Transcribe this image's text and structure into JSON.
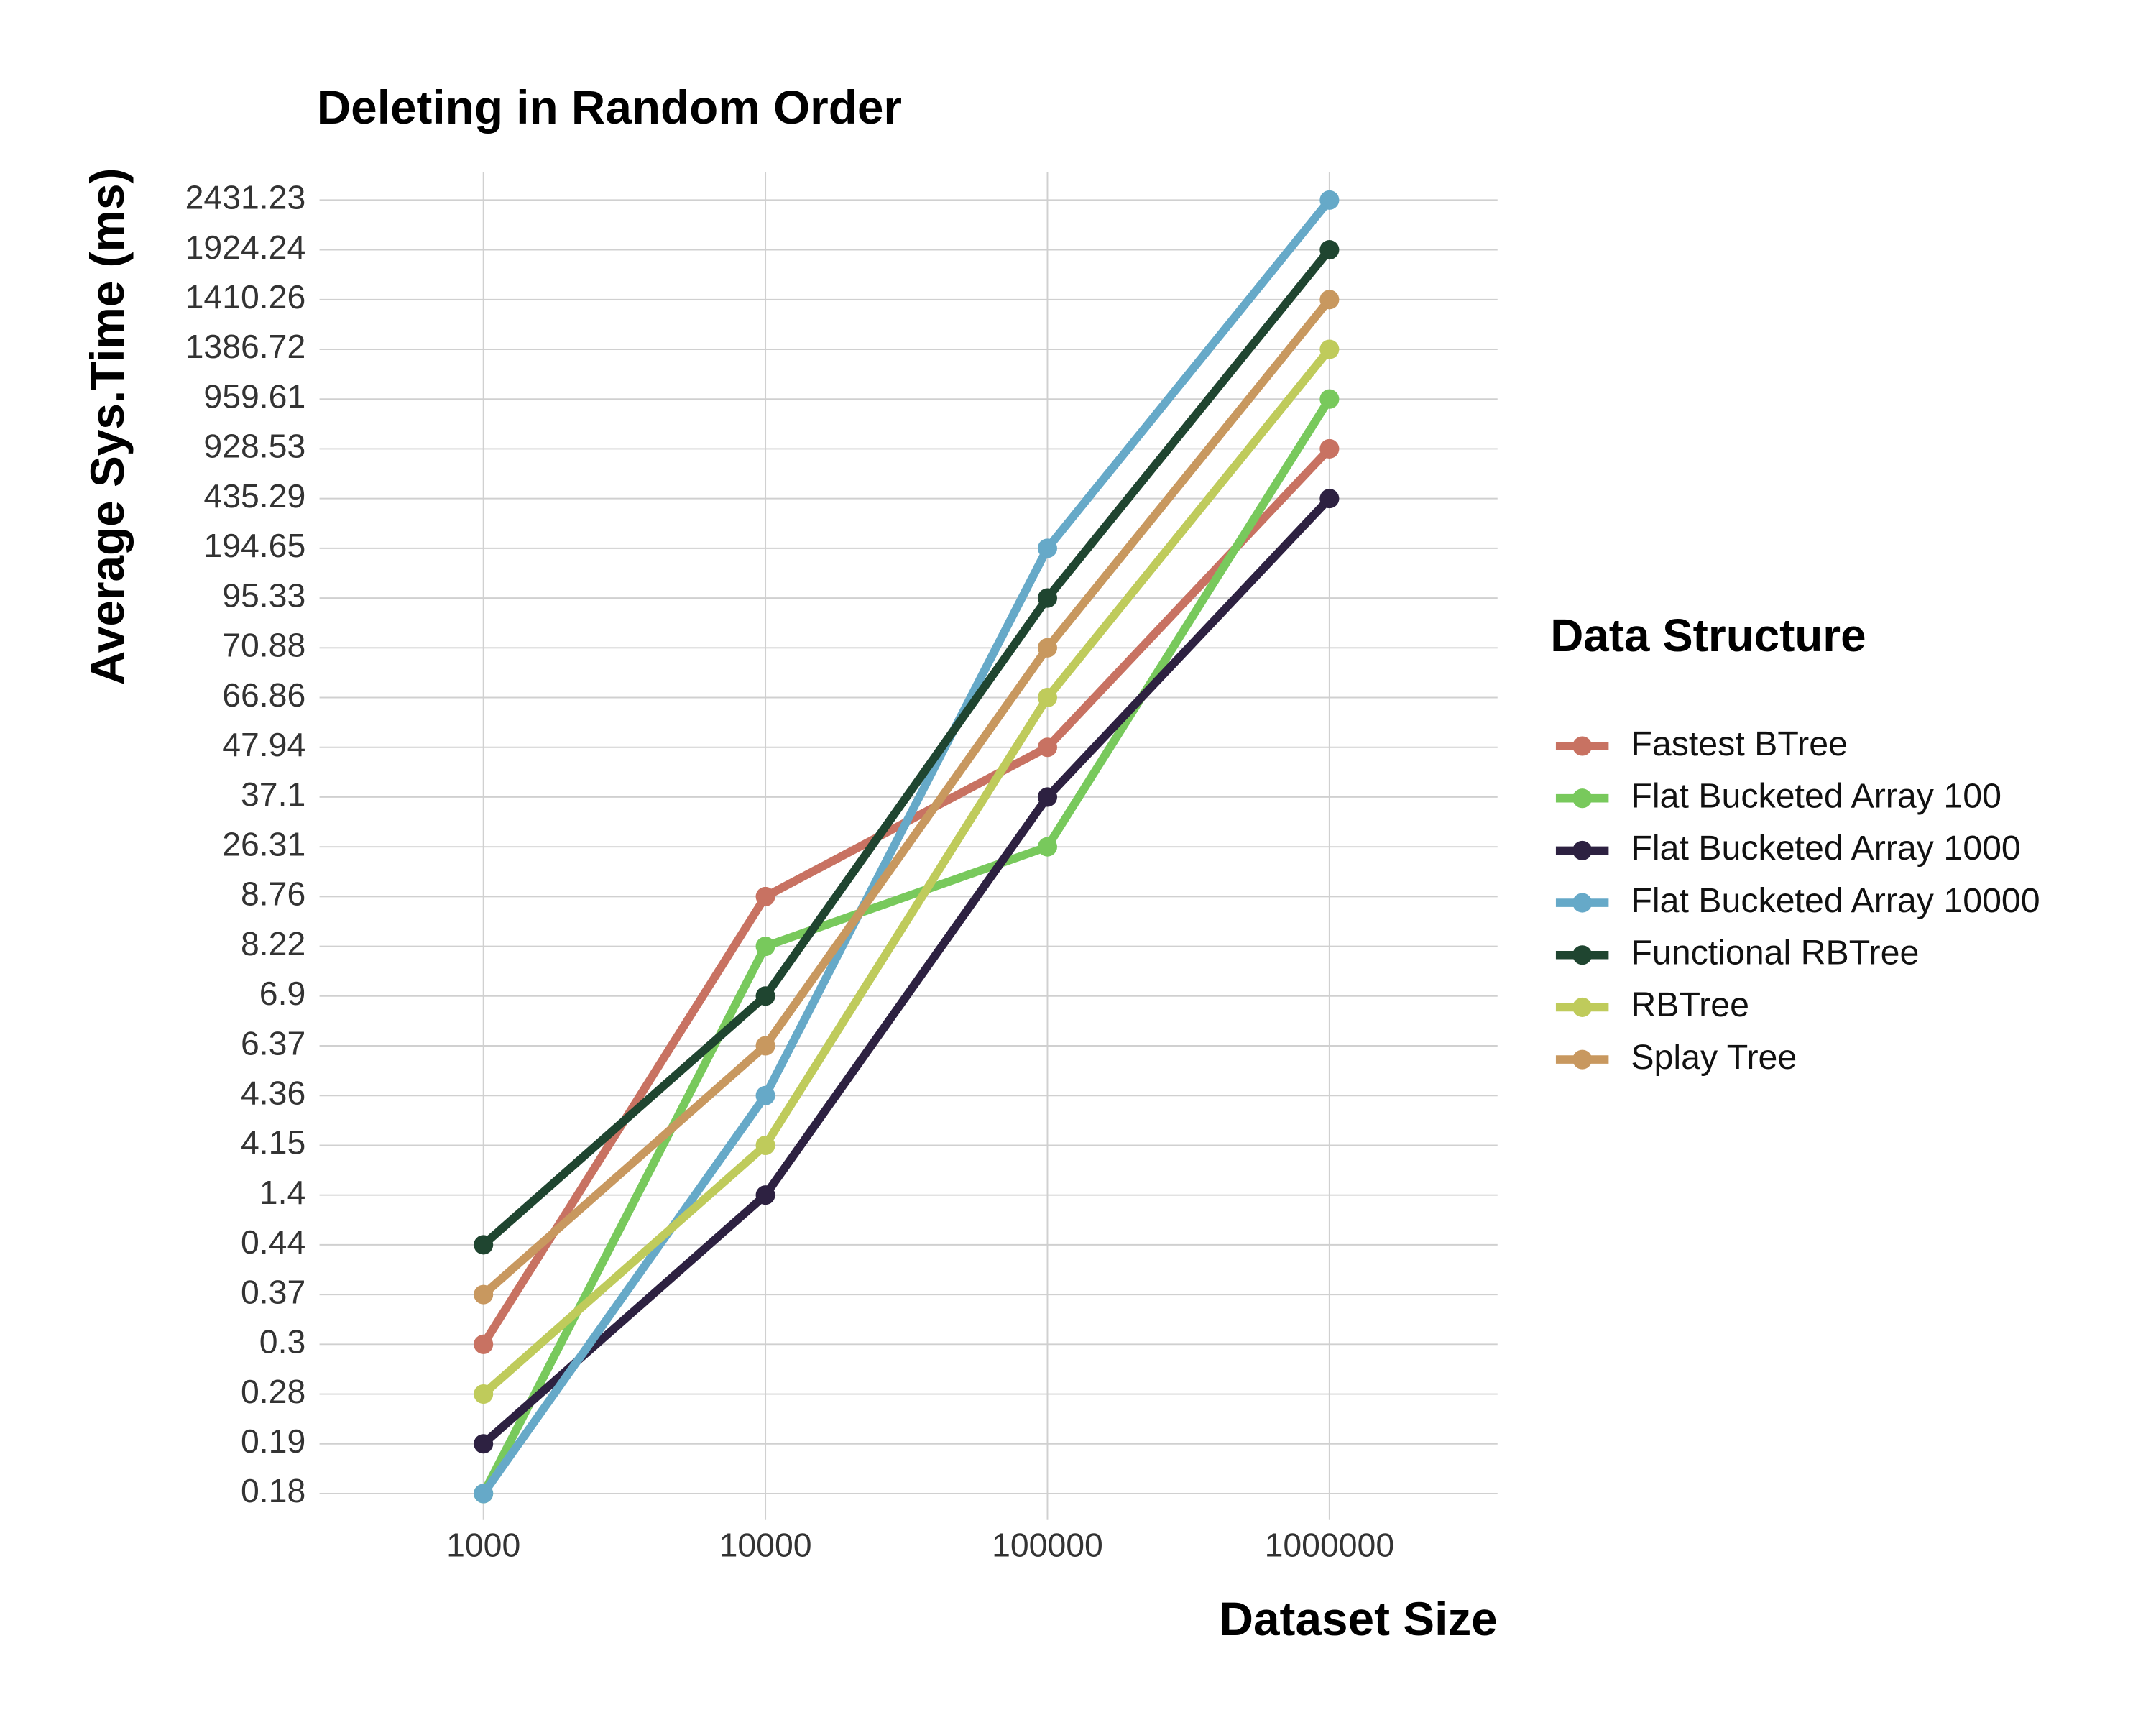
{
  "chart_data": {
    "type": "line",
    "title": "Deleting in Random Order",
    "x_label": "Dataset Size",
    "y_label": "Average Sys.Time (ms)",
    "legend_title": "Data Structure",
    "legend_position": "right",
    "grid": true,
    "categories": [
      1000,
      10000,
      100000,
      1000000
    ],
    "ycategories": [
      0.18,
      0.19,
      0.28,
      0.3,
      0.37,
      0.44,
      1.4,
      4.15,
      4.36,
      6.37,
      6.9,
      8.22,
      8.76,
      26.31,
      37.1,
      47.94,
      66.86,
      70.88,
      95.33,
      194.65,
      435.29,
      928.53,
      959.61,
      1386.72,
      1410.26,
      1924.24,
      2431.23
    ],
    "series": [
      {
        "name": "Fastest BTree",
        "color": "#c87262",
        "values": [
          0.3,
          8.76,
          47.94,
          928.53
        ]
      },
      {
        "name": "Flat Bucketed Array 100",
        "color": "#78c95c",
        "values": [
          0.18,
          8.22,
          26.31,
          959.61
        ]
      },
      {
        "name": "Flat Bucketed Array 1000",
        "color": "#2d2141",
        "values": [
          0.19,
          1.4,
          37.1,
          435.29
        ]
      },
      {
        "name": "Flat Bucketed Array 10000",
        "color": "#66a9c8",
        "values": [
          0.18,
          4.36,
          194.65,
          2431.23
        ]
      },
      {
        "name": "Functional RBTree",
        "color": "#1f4530",
        "values": [
          0.44,
          6.9,
          95.33,
          1924.24
        ]
      },
      {
        "name": "RBTree",
        "color": "#bfcb5b",
        "values": [
          0.28,
          4.15,
          66.86,
          1386.72
        ]
      },
      {
        "name": "Splay Tree",
        "color": "#c8985f",
        "values": [
          0.37,
          6.37,
          70.88,
          1410.26
        ]
      }
    ]
  }
}
